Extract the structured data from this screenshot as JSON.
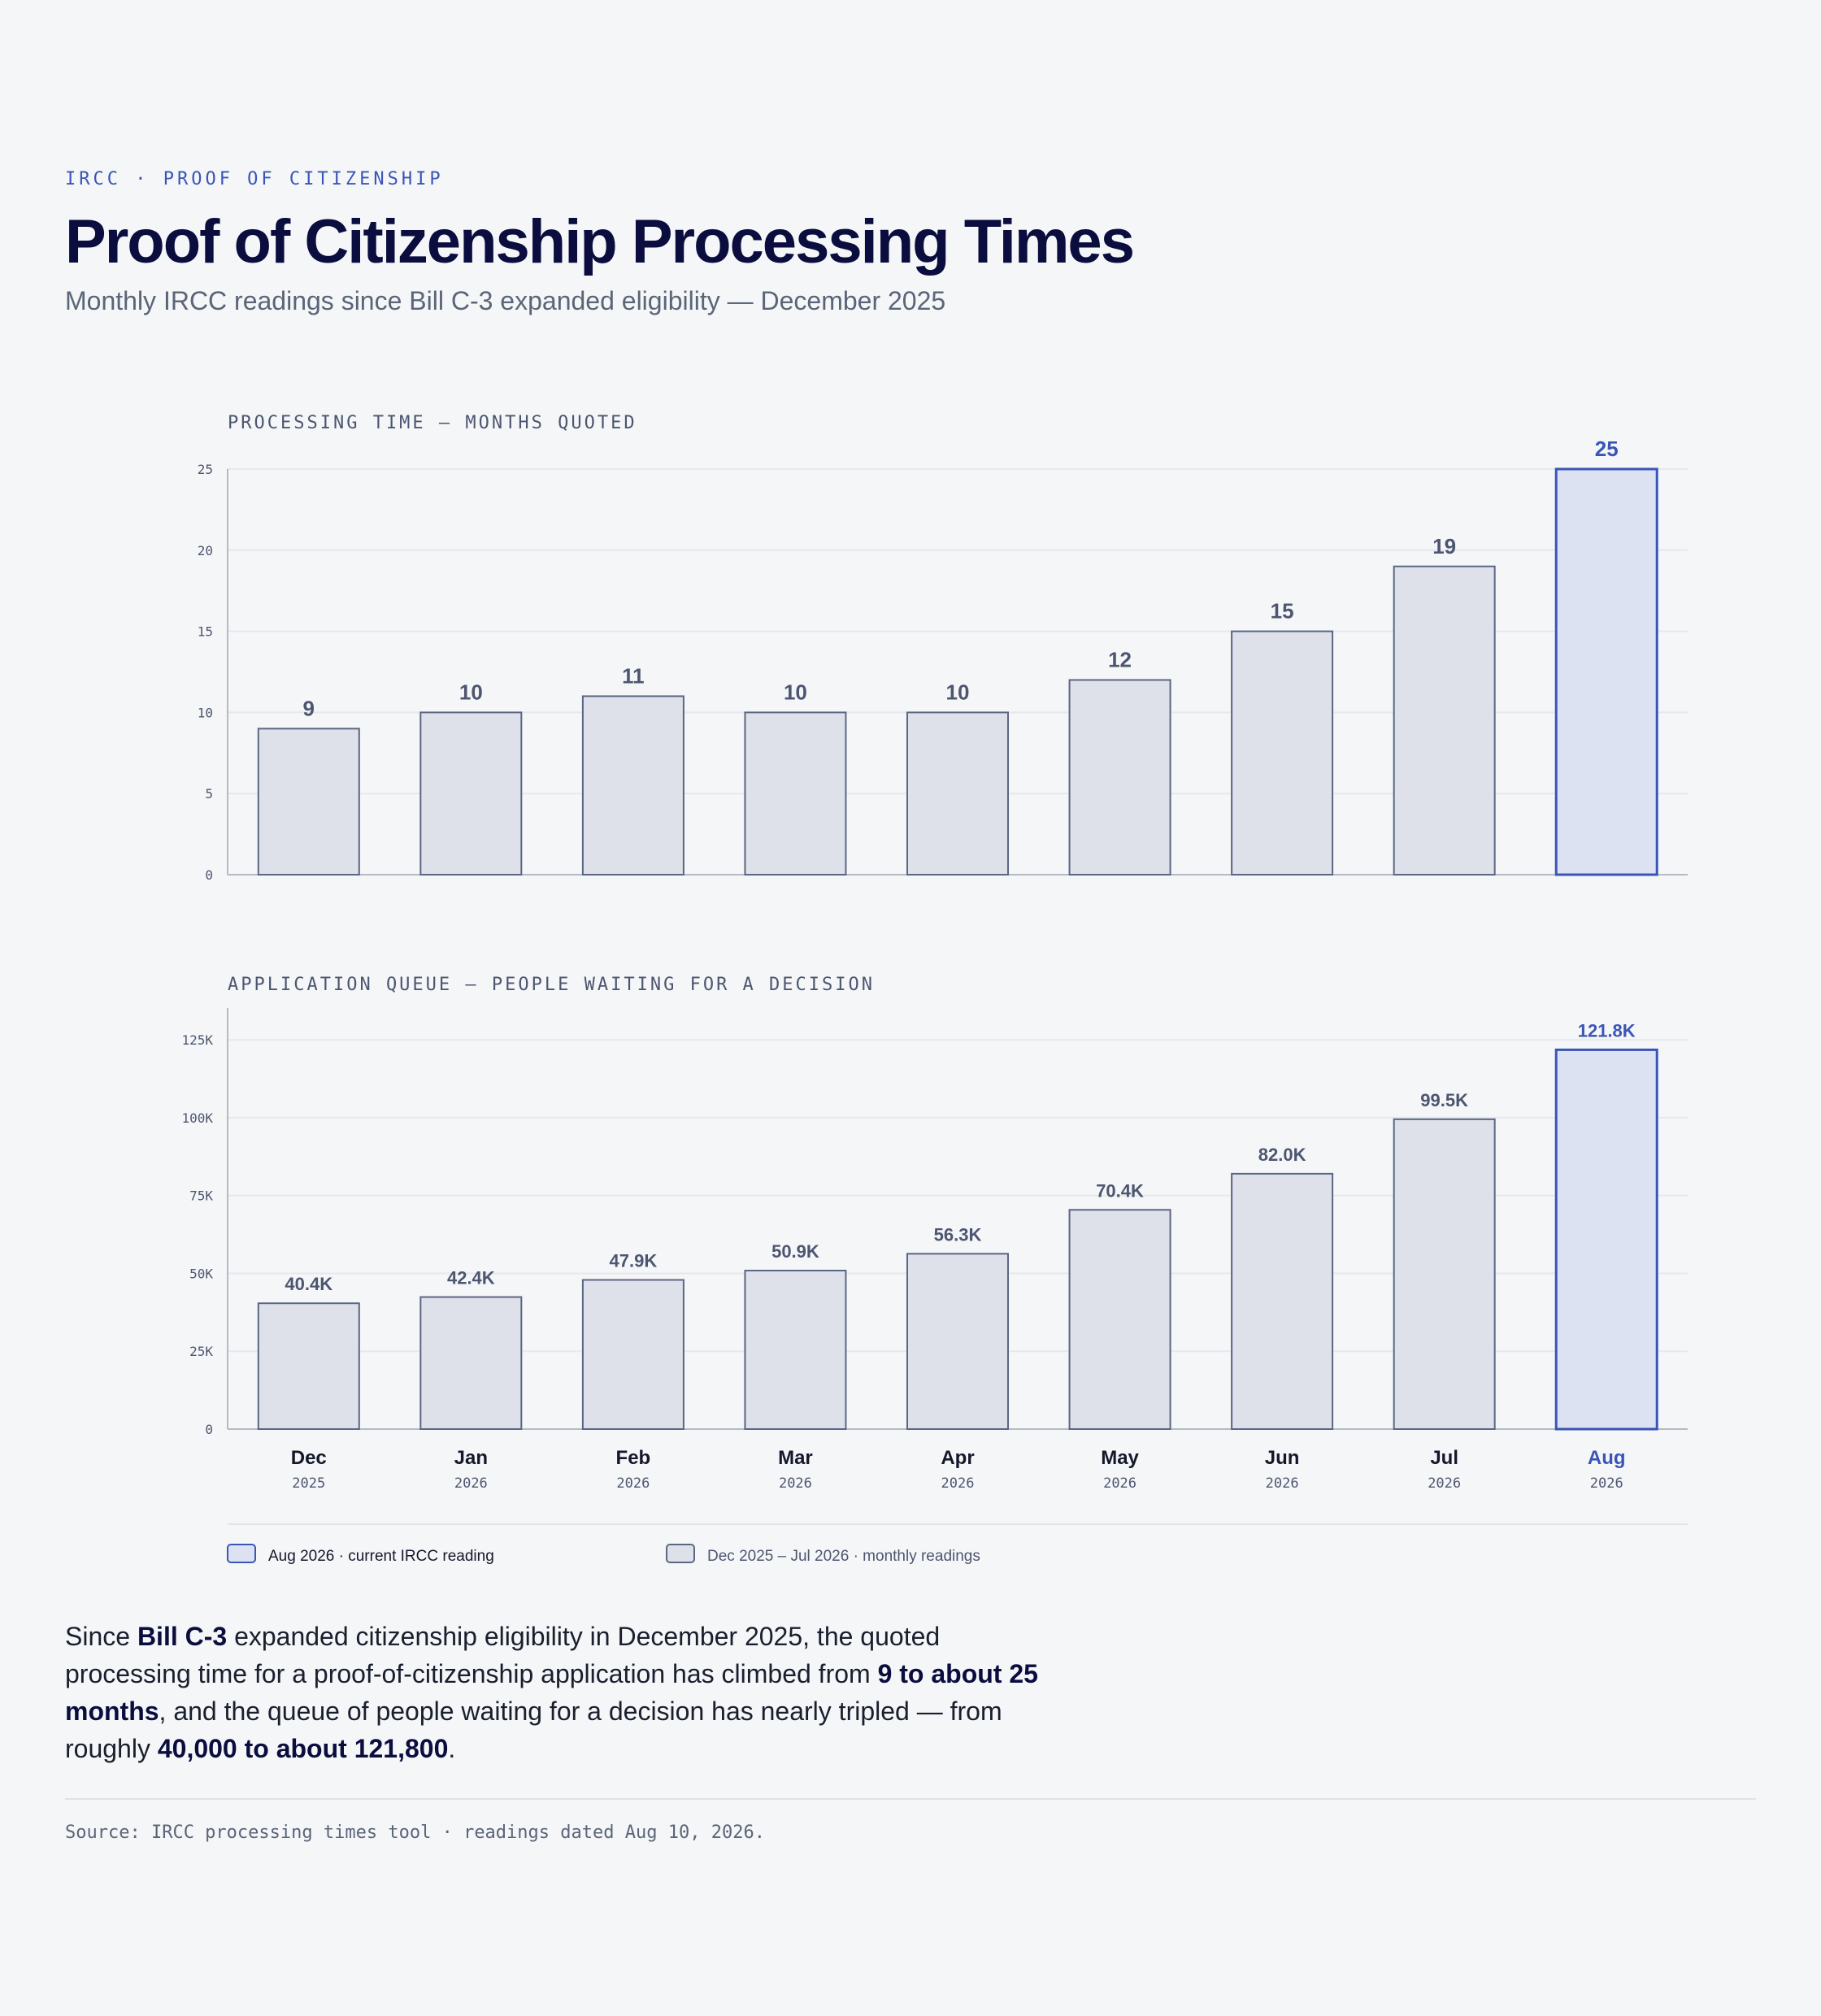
{
  "header": {
    "kicker": "IRCC · PROOF OF CITIZENSHIP",
    "title": "Proof of Citizenship Processing Times",
    "subtitle": "Monthly IRCC readings since Bill C-3 expanded eligibility — December 2025"
  },
  "colors": {
    "bar_fill": "#dfe1ea",
    "bar_stroke": "#5b6683",
    "highlight_fill": "#dde2f2",
    "highlight_stroke": "#3a55b8",
    "grid": "#e6e8ec",
    "axis": "#b5bac4",
    "label": "#4d5670",
    "title_text": "#0b0d3e"
  },
  "chart_data": [
    {
      "type": "bar",
      "title": "PROCESSING TIME — MONTHS QUOTED",
      "categories": [
        "Dec",
        "Jan",
        "Feb",
        "Mar",
        "Apr",
        "May",
        "Jun",
        "Jul",
        "Aug"
      ],
      "years": [
        "2025",
        "2026",
        "2026",
        "2026",
        "2026",
        "2026",
        "2026",
        "2026",
        "2026"
      ],
      "values": [
        9,
        10,
        11,
        10,
        10,
        12,
        15,
        19,
        25
      ],
      "value_labels": [
        "9",
        "10",
        "11",
        "10",
        "10",
        "12",
        "15",
        "19",
        "25"
      ],
      "ylim": [
        0,
        25
      ],
      "yticks": [
        0,
        5,
        10,
        15,
        20,
        25
      ],
      "ytick_labels": [
        "0",
        "5",
        "10",
        "15",
        "20",
        "25"
      ],
      "highlight_index": 8,
      "grid": true
    },
    {
      "type": "bar",
      "title": "APPLICATION QUEUE — PEOPLE WAITING FOR A DECISION",
      "categories": [
        "Dec",
        "Jan",
        "Feb",
        "Mar",
        "Apr",
        "May",
        "Jun",
        "Jul",
        "Aug"
      ],
      "years": [
        "2025",
        "2026",
        "2026",
        "2026",
        "2026",
        "2026",
        "2026",
        "2026",
        "2026"
      ],
      "values": [
        40400,
        42400,
        47900,
        50900,
        56300,
        70400,
        82000,
        99500,
        121800
      ],
      "value_labels": [
        "40.4K",
        "42.4K",
        "47.9K",
        "50.9K",
        "56.3K",
        "70.4K",
        "82.0K",
        "99.5K",
        "121.8K"
      ],
      "ylim": [
        0,
        130000
      ],
      "yticks": [
        0,
        25000,
        50000,
        75000,
        100000,
        125000
      ],
      "ytick_labels": [
        "0",
        "25K",
        "50K",
        "75K",
        "100K",
        "125K"
      ],
      "highlight_index": 8,
      "grid": true
    }
  ],
  "legend": {
    "placement": "bottom-left",
    "items": [
      {
        "label": "Aug 2026 · current IRCC reading",
        "highlight": true
      },
      {
        "label": "Dec 2025 – Jul 2026 · monthly readings",
        "highlight": false
      }
    ]
  },
  "summary": {
    "p1": "Since ",
    "b1": "Bill C-3",
    "p2": " expanded citizenship eligibility in December 2025, the quoted processing time for a proof-of-citizenship application has climbed from ",
    "b2": "9 to about 25 months",
    "p3": ", and the queue of people waiting for a decision has nearly tripled — from roughly ",
    "b3": "40,000 to about 121,800",
    "p4": "."
  },
  "source": "Source: IRCC processing times tool · readings dated Aug 10, 2026."
}
